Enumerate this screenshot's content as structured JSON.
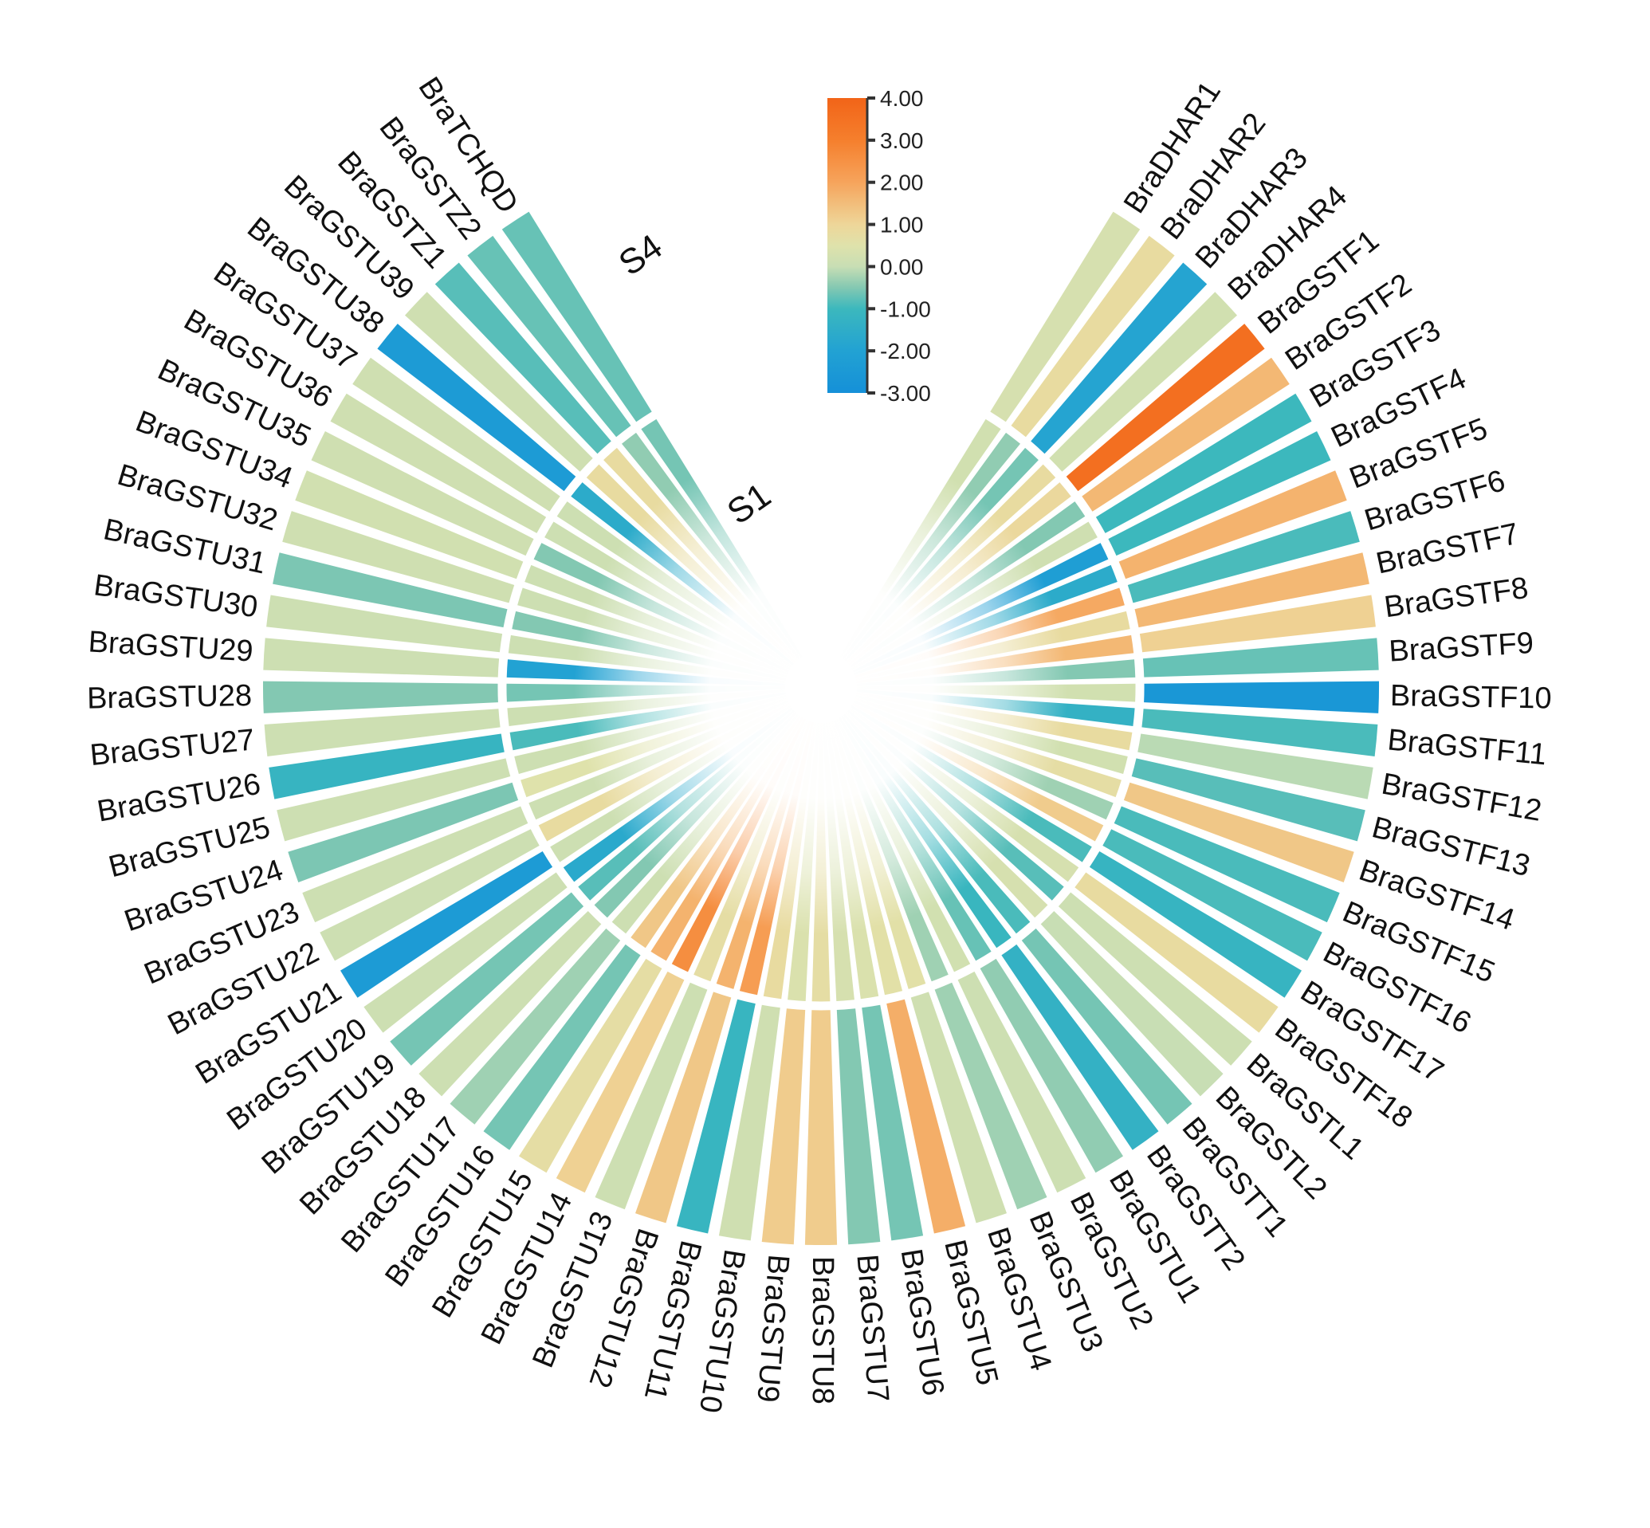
{
  "chart_data": {
    "type": "heatmap",
    "subtype": "circular-polar-fan",
    "title": "",
    "section_labels": {
      "outer": "S4",
      "inner": "S1"
    },
    "rings": [
      {
        "id": "S4",
        "label": "S4",
        "position": "outer"
      },
      {
        "id": "S1",
        "label": "S1",
        "position": "inner"
      }
    ],
    "genes": [
      "BraDHAR1",
      "BraDHAR2",
      "BraDHAR3",
      "BraDHAR4",
      "BraGSTF1",
      "BraGSTF2",
      "BraGSTF3",
      "BraGSTF4",
      "BraGSTF5",
      "BraGSTF6",
      "BraGSTF7",
      "BraGSTF8",
      "BraGSTF9",
      "BraGSTF10",
      "BraGSTF11",
      "BraGSTF12",
      "BraGSTF13",
      "BraGSTF14",
      "BraGSTF15",
      "BraGSTF16",
      "BraGSTF17",
      "BraGSTF18",
      "BraGSTL1",
      "BraGSTL2",
      "BraGSTT1",
      "BraGSTT2",
      "BraGSTU1",
      "BraGSTU2",
      "BraGSTU3",
      "BraGSTU4",
      "BraGSTU5",
      "BraGSTU6",
      "BraGSTU7",
      "BraGSTU8",
      "BraGSTU9",
      "BraGSTU10",
      "BraGSTU11",
      "BraGSTU12",
      "BraGSTU13",
      "BraGSTU14",
      "BraGSTU15",
      "BraGSTU16",
      "BraGSTU17",
      "BraGSTU18",
      "BraGSTU19",
      "BraGSTU20",
      "BraGSTU21",
      "BraGSTU22",
      "BraGSTU23",
      "BraGSTU24",
      "BraGSTU25",
      "BraGSTU26",
      "BraGSTU27",
      "BraGSTU28",
      "BraGSTU29",
      "BraGSTU30",
      "BraGSTU31",
      "BraGSTU32",
      "BraGSTU34",
      "BraGSTU35",
      "BraGSTU36",
      "BraGSTU37",
      "BraGSTU38",
      "BraGSTU39",
      "BraGSTZ1",
      "BraGSTZ2",
      "BraTCHQD"
    ],
    "series": [
      {
        "name": "S4",
        "ring": "outer",
        "values": [
          0.3,
          0.8,
          -1.9,
          0.2,
          3.6,
          1.6,
          -1.0,
          -1.0,
          1.7,
          -0.9,
          1.6,
          1.1,
          -0.7,
          -2.6,
          -0.9,
          -0.1,
          -0.8,
          1.3,
          -0.9,
          -0.9,
          -1.2,
          0.8,
          0.1,
          0.0,
          -0.6,
          -1.3,
          -0.4,
          0.1,
          -0.3,
          0.15,
          1.8,
          -0.6,
          -0.5,
          1.2,
          1.2,
          0.15,
          -1.15,
          1.3,
          0.1,
          1.1,
          0.7,
          -0.6,
          -0.3,
          0.1,
          -0.6,
          0.1,
          -2.4,
          0.1,
          0.1,
          -0.55,
          0.1,
          -1.2,
          0.1,
          -0.5,
          0.1,
          0.1,
          -0.55,
          0.15,
          0.2,
          0.15,
          0.15,
          0.15,
          -2.4,
          0.15,
          -0.8,
          -0.7,
          -0.7
        ]
      },
      {
        "name": "S1",
        "ring": "inner",
        "values": [
          0.2,
          -0.4,
          -0.6,
          0.8,
          0.9,
          -0.5,
          0.15,
          -2.2,
          -1.6,
          1.9,
          0.8,
          1.6,
          -0.5,
          0.2,
          -1.3,
          0.8,
          0.2,
          0.7,
          -0.3,
          1.2,
          -0.9,
          0.3,
          -0.8,
          0.3,
          -0.9,
          -1.1,
          -0.7,
          0.2,
          -0.3,
          0.6,
          0.6,
          0.4,
          0.3,
          0.7,
          0.4,
          0.8,
          2.2,
          1.7,
          0.7,
          2.6,
          1.7,
          1.3,
          0.1,
          -0.5,
          -0.8,
          -1.7,
          0.1,
          0.8,
          0.1,
          0.5,
          0.1,
          -0.9,
          0.1,
          -0.6,
          -2.0,
          0.1,
          -0.5,
          0.1,
          0.1,
          -0.5,
          0.1,
          0.1,
          -1.6,
          0.8,
          0.8,
          -0.4,
          -0.6
        ]
      }
    ],
    "value_domain": [
      -3,
      4
    ],
    "legend": {
      "tick_labels": [
        "4.00",
        "3.00",
        "2.00",
        "1.00",
        "0.00",
        "-1.00",
        "-2.00",
        "-3.00"
      ]
    },
    "colorscale": [
      {
        "v": -3,
        "color": "#1590d8"
      },
      {
        "v": -2,
        "color": "#22a2d3"
      },
      {
        "v": -1,
        "color": "#3cb8bd"
      },
      {
        "v": -0.5,
        "color": "#83c8b2"
      },
      {
        "v": 0,
        "color": "#c8deb4"
      },
      {
        "v": 0.5,
        "color": "#dfe2ab"
      },
      {
        "v": 1,
        "color": "#eed699"
      },
      {
        "v": 2,
        "color": "#f6a45c"
      },
      {
        "v": 3,
        "color": "#f57f2d"
      },
      {
        "v": 4,
        "color": "#f26418"
      }
    ],
    "layout": {
      "center_x": 1030,
      "center_y": 862,
      "outer_radius": 700,
      "mid_radius": 400,
      "hole_radius": 45,
      "start_deg": 31,
      "span_deg": 298,
      "legend_position": "top-center",
      "ring_label_positions": {
        "outer": [
          812,
          332
        ],
        "inner": [
          948,
          644
        ]
      }
    }
  }
}
